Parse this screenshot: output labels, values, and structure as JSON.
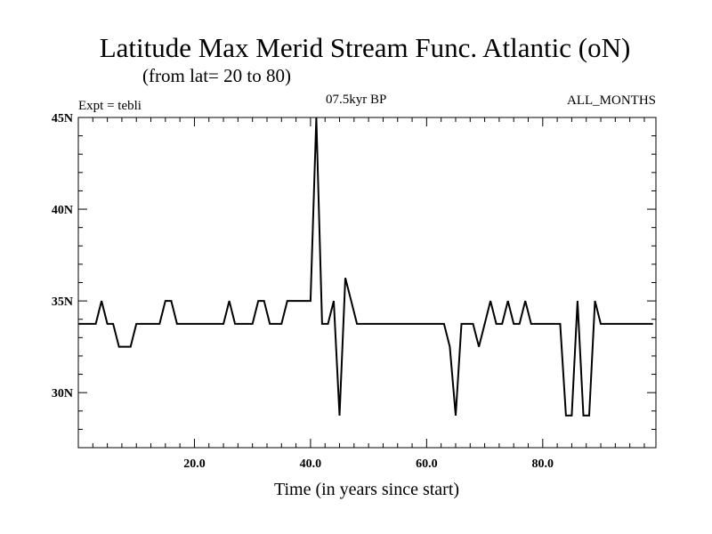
{
  "chart_data": {
    "type": "line",
    "title": "Latitude Max Merid Stream Func. Atlantic (oN)",
    "subtitle": "(from lat= 20 to 80)",
    "annotation_left": "Expt = tebli",
    "annotation_center": "07.5kyr BP",
    "annotation_right": "ALL_MONTHS",
    "xlabel": "Time (in years since start)",
    "ylabel": "",
    "xlim": [
      0,
      99.5
    ],
    "ylim": [
      27,
      45
    ],
    "x_ticks": [
      20,
      40,
      60,
      80
    ],
    "x_tick_labels": [
      "20.0",
      "40.0",
      "60.0",
      "80.0"
    ],
    "y_ticks": [
      30,
      35,
      40,
      45
    ],
    "y_tick_labels": [
      "30N",
      "35N",
      "40N",
      "45N"
    ],
    "grid": false,
    "series": [
      {
        "color": "#000000",
        "x": [
          0,
          1,
          2,
          3,
          4,
          5,
          6,
          7,
          8,
          9,
          10,
          11,
          12,
          13,
          14,
          15,
          16,
          17,
          18,
          19,
          20,
          21,
          22,
          23,
          24,
          25,
          26,
          27,
          28,
          29,
          30,
          31,
          32,
          33,
          34,
          35,
          36,
          37,
          38,
          39,
          40,
          41,
          42,
          43,
          44,
          45,
          46,
          47,
          48,
          49,
          50,
          51,
          52,
          53,
          54,
          55,
          56,
          57,
          58,
          59,
          60,
          61,
          62,
          63,
          64,
          65,
          66,
          67,
          68,
          69,
          70,
          71,
          72,
          73,
          74,
          75,
          76,
          77,
          78,
          79,
          80,
          81,
          82,
          83,
          84,
          85,
          86,
          87,
          88,
          89,
          90,
          91,
          92,
          93,
          94,
          95,
          96,
          97,
          98,
          99
        ],
        "y": [
          33.75,
          33.75,
          33.75,
          33.75,
          35,
          33.75,
          33.75,
          32.5,
          32.5,
          32.5,
          33.75,
          33.75,
          33.75,
          33.75,
          33.75,
          35,
          35,
          33.75,
          33.75,
          33.75,
          33.75,
          33.75,
          33.75,
          33.75,
          33.75,
          33.75,
          35,
          33.75,
          33.75,
          33.75,
          33.75,
          35,
          35,
          33.75,
          33.75,
          33.75,
          35,
          35,
          35,
          35,
          35,
          45,
          33.75,
          33.75,
          35,
          28.75,
          36.25,
          35,
          33.75,
          33.75,
          33.75,
          33.75,
          33.75,
          33.75,
          33.75,
          33.75,
          33.75,
          33.75,
          33.75,
          33.75,
          33.75,
          33.75,
          33.75,
          33.75,
          32.5,
          28.75,
          33.75,
          33.75,
          33.75,
          32.5,
          33.75,
          35,
          33.75,
          33.75,
          35,
          33.75,
          33.75,
          35,
          33.75,
          33.75,
          33.75,
          33.75,
          33.75,
          33.75,
          28.75,
          28.75,
          35,
          28.75,
          28.75,
          35,
          33.75,
          33.75,
          33.75,
          33.75,
          33.75,
          33.75,
          33.75,
          33.75,
          33.75,
          33.75
        ]
      }
    ]
  }
}
